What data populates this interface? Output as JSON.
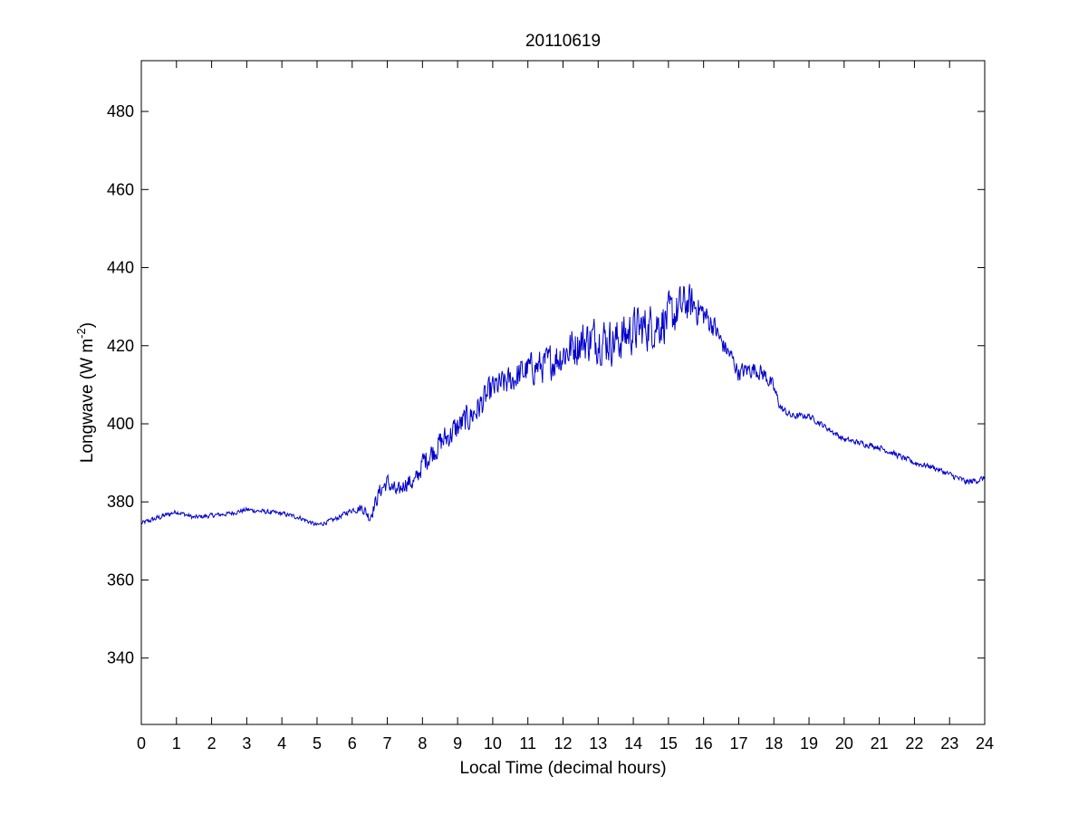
{
  "chart_data": {
    "type": "line",
    "title": "20110619",
    "xlabel": "Local Time (decimal hours)",
    "ylabel": {
      "prefix": "Longwave (W m",
      "superscript": "-2",
      "suffix": ")"
    },
    "xlim": [
      0,
      24
    ],
    "ylim": [
      323,
      493
    ],
    "xticks": [
      0,
      1,
      2,
      3,
      4,
      5,
      6,
      7,
      8,
      9,
      10,
      11,
      12,
      13,
      14,
      15,
      16,
      17,
      18,
      19,
      20,
      21,
      22,
      23,
      24
    ],
    "xtick_labels": [
      "0",
      "1",
      "2",
      "3",
      "4",
      "5",
      "6",
      "7",
      "8",
      "9",
      "10",
      "11",
      "12",
      "13",
      "14",
      "15",
      "16",
      "17",
      "18",
      "19",
      "20",
      "21",
      "22",
      "23",
      "24"
    ],
    "yticks": [
      340,
      360,
      380,
      400,
      420,
      440,
      460,
      480
    ],
    "ytick_labels": [
      "340",
      "360",
      "380",
      "400",
      "420",
      "440",
      "460",
      "480"
    ],
    "grid": false,
    "series": [
      {
        "color": "#0000cc",
        "x": [
          0.0,
          0.5,
          1.0,
          1.5,
          2.0,
          2.5,
          3.0,
          3.5,
          4.0,
          4.5,
          5.0,
          5.5,
          6.0,
          6.3,
          6.5,
          6.8,
          7.0,
          7.3,
          7.5,
          7.8,
          8.0,
          8.5,
          9.0,
          9.5,
          10.0,
          10.5,
          11.0,
          11.5,
          12.0,
          12.5,
          13.0,
          13.5,
          14.0,
          14.5,
          15.0,
          15.3,
          15.5,
          15.8,
          16.0,
          16.3,
          16.5,
          16.8,
          17.0,
          17.3,
          17.5,
          17.8,
          18.0,
          18.2,
          18.5,
          19.0,
          19.5,
          20.0,
          20.5,
          21.0,
          21.5,
          22.0,
          22.5,
          23.0,
          23.5,
          24.0
        ],
        "y": [
          374.5,
          376.0,
          377.5,
          376.0,
          376.5,
          377.0,
          378.0,
          377.5,
          377.0,
          376.0,
          374.0,
          375.5,
          378.0,
          378.5,
          376.0,
          383.0,
          385.0,
          382.0,
          385.0,
          385.0,
          390.0,
          395.0,
          399.0,
          403.0,
          409.0,
          411.0,
          414.0,
          415.0,
          418.0,
          421.0,
          422.0,
          421.0,
          424.0,
          425.0,
          427.0,
          429.0,
          431.0,
          430.0,
          428.0,
          425.0,
          421.0,
          417.0,
          413.0,
          414.0,
          414.0,
          412.0,
          409.0,
          404.0,
          402.0,
          402.0,
          399.0,
          396.0,
          395.0,
          394.0,
          392.0,
          390.0,
          389.0,
          387.0,
          385.0,
          386.0
        ],
        "noise": [
          0.8,
          1.0,
          0.8,
          0.8,
          0.8,
          0.8,
          0.8,
          0.8,
          0.8,
          0.8,
          0.8,
          0.8,
          1.0,
          2.0,
          2.0,
          3.0,
          3.0,
          3.0,
          3.0,
          3.5,
          4.0,
          4.5,
          5.0,
          5.0,
          5.0,
          5.0,
          5.5,
          6.0,
          7.0,
          7.5,
          8.0,
          8.0,
          8.0,
          8.0,
          8.0,
          8.0,
          7.0,
          6.0,
          5.0,
          4.0,
          3.5,
          3.0,
          3.0,
          3.0,
          3.0,
          3.0,
          2.5,
          1.5,
          1.2,
          1.0,
          1.0,
          1.0,
          1.0,
          1.0,
          1.0,
          1.0,
          1.0,
          1.0,
          1.2,
          1.0
        ]
      }
    ]
  }
}
